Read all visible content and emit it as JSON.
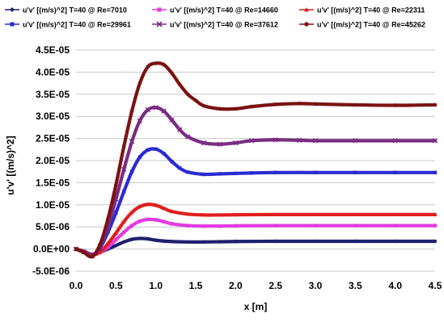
{
  "chart_data": {
    "type": "line",
    "title": "",
    "xlabel": "x [m]",
    "ylabel": "u'v' [(m/s)^2]",
    "xlim": [
      0,
      4.5
    ],
    "ylim": [
      -5e-06,
      4.5e-05
    ],
    "x_ticks": [
      0.0,
      0.5,
      1.0,
      1.5,
      2.0,
      2.5,
      3.0,
      3.5,
      4.0,
      4.5
    ],
    "x_tick_labels": [
      "0.0",
      "0.5",
      "1.0",
      "1.5",
      "2.0",
      "2.5",
      "3.0",
      "3.5",
      "4.0",
      "4.5"
    ],
    "y_ticks": [
      -5e-06,
      0,
      5e-06,
      1e-05,
      1.5e-05,
      2e-05,
      2.5e-05,
      3e-05,
      3.5e-05,
      4e-05,
      4.5e-05
    ],
    "y_tick_labels": [
      "-5.0E-06",
      "0.0E+00",
      "5.0E-06",
      "1.0E-05",
      "1.5E-05",
      "2.0E-05",
      "2.5E-05",
      "3.0E-05",
      "3.5E-05",
      "4.0E-05",
      "4.5E-05"
    ],
    "grid": "horizontal",
    "legend_position": "top",
    "series": [
      {
        "name": "u'v' [(m/s)^2] T=40 @ Re=7010",
        "color": "#1f1f6e",
        "marker": "diamond",
        "x": [
          0,
          0.1,
          0.2,
          0.3,
          0.4,
          0.5,
          0.6,
          0.7,
          0.8,
          0.9,
          1.0,
          1.1,
          1.2,
          1.4,
          1.6,
          1.8,
          2.0,
          2.5,
          3.0,
          3.5,
          4.0,
          4.5
        ],
        "values": [
          0,
          -5e-07,
          -1.2e-06,
          -7e-07,
          0,
          8e-07,
          1.6e-06,
          2.2e-06,
          2.4e-06,
          2.3e-06,
          2e-06,
          1.8e-06,
          1.7e-06,
          1.6e-06,
          1.6e-06,
          1.65e-06,
          1.7e-06,
          1.75e-06,
          1.75e-06,
          1.75e-06,
          1.75e-06,
          1.75e-06
        ]
      },
      {
        "name": "u'v' [(m/s)^2] T=40 @ Re=14660",
        "color": "#e23be0",
        "marker": "square",
        "x": [
          0,
          0.1,
          0.2,
          0.3,
          0.4,
          0.5,
          0.6,
          0.7,
          0.8,
          0.9,
          1.0,
          1.1,
          1.2,
          1.4,
          1.6,
          1.8,
          2.0,
          2.5,
          3.0,
          3.5,
          4.0,
          4.5
        ],
        "values": [
          0,
          -6e-07,
          -1.3e-06,
          -8e-07,
          4e-07,
          2.1e-06,
          3.8e-06,
          5.3e-06,
          6.3e-06,
          6.7e-06,
          6.6e-06,
          6.2e-06,
          5.7e-06,
          5.3e-06,
          5.2e-06,
          5.2e-06,
          5.25e-06,
          5.3e-06,
          5.3e-06,
          5.3e-06,
          5.3e-06,
          5.3e-06
        ]
      },
      {
        "name": "u'v' [(m/s)^2] T=40 @ Re=22311",
        "color": "#e01e1e",
        "marker": "triangle",
        "x": [
          0,
          0.1,
          0.2,
          0.3,
          0.4,
          0.5,
          0.6,
          0.7,
          0.8,
          0.9,
          1.0,
          1.1,
          1.2,
          1.4,
          1.6,
          1.8,
          2.0,
          2.5,
          3.0,
          3.5,
          4.0,
          4.5
        ],
        "values": [
          0,
          -6e-07,
          -1.4e-06,
          -7e-07,
          1.2e-06,
          3.6e-06,
          6.2e-06,
          8.3e-06,
          9.6e-06,
          1.01e-05,
          9.9e-06,
          9.2e-06,
          8.5e-06,
          7.9e-06,
          7.7e-06,
          7.7e-06,
          7.75e-06,
          7.8e-06,
          7.8e-06,
          7.8e-06,
          7.8e-06,
          7.8e-06
        ]
      },
      {
        "name": "u'v' [(m/s)^2] T=40 @ Re=29961",
        "color": "#2b2bd1",
        "marker": "square",
        "x": [
          0,
          0.1,
          0.2,
          0.3,
          0.4,
          0.5,
          0.6,
          0.7,
          0.8,
          0.9,
          1.0,
          1.1,
          1.2,
          1.3,
          1.4,
          1.6,
          1.8,
          2.0,
          2.2,
          2.5,
          3.0,
          3.5,
          4.0,
          4.5
        ],
        "values": [
          0,
          -7e-07,
          -1.5e-06,
          2e-07,
          3.8e-06,
          8.2e-06,
          1.3e-05,
          1.75e-05,
          2.08e-05,
          2.24e-05,
          2.26e-05,
          2.16e-05,
          1.98e-05,
          1.83e-05,
          1.74e-05,
          1.69e-05,
          1.7e-05,
          1.71e-05,
          1.72e-05,
          1.73e-05,
          1.73e-05,
          1.73e-05,
          1.73e-05,
          1.73e-05
        ]
      },
      {
        "name": "u'v' [(m/s)^2] T=40 @ Re=37612",
        "color": "#7a2c82",
        "marker": "x",
        "x": [
          0,
          0.1,
          0.2,
          0.3,
          0.4,
          0.5,
          0.6,
          0.7,
          0.8,
          0.9,
          1.0,
          1.1,
          1.2,
          1.3,
          1.4,
          1.6,
          1.8,
          2.0,
          2.2,
          2.5,
          2.8,
          3.0,
          3.5,
          4.0,
          4.5
        ],
        "values": [
          0,
          -7e-07,
          -1.6e-06,
          6e-07,
          5.2e-06,
          1.13e-05,
          1.8e-05,
          2.43e-05,
          2.9e-05,
          3.15e-05,
          3.2e-05,
          3.12e-05,
          2.92e-05,
          2.7e-05,
          2.54e-05,
          2.4e-05,
          2.37e-05,
          2.4e-05,
          2.45e-05,
          2.47e-05,
          2.46e-05,
          2.45e-05,
          2.45e-05,
          2.45e-05,
          2.45e-05
        ]
      },
      {
        "name": "u'v' [(m/s)^2] T=40 @ Re=45262",
        "color": "#7b1212",
        "marker": "circle",
        "x": [
          0,
          0.1,
          0.2,
          0.3,
          0.4,
          0.5,
          0.6,
          0.7,
          0.8,
          0.9,
          1.0,
          1.1,
          1.2,
          1.3,
          1.4,
          1.5,
          1.6,
          1.8,
          2.0,
          2.2,
          2.5,
          2.8,
          3.0,
          3.5,
          4.0,
          4.5
        ],
        "values": [
          0,
          -8e-07,
          -1.7e-06,
          1e-06,
          6.8e-06,
          1.45e-05,
          2.32e-05,
          3.12e-05,
          3.75e-05,
          4.12e-05,
          4.2e-05,
          4.17e-05,
          3.98e-05,
          3.72e-05,
          3.5e-05,
          3.36e-05,
          3.24e-05,
          3.17e-05,
          3.17e-05,
          3.22e-05,
          3.27e-05,
          3.29e-05,
          3.28e-05,
          3.26e-05,
          3.25e-05,
          3.26e-05
        ]
      }
    ]
  }
}
